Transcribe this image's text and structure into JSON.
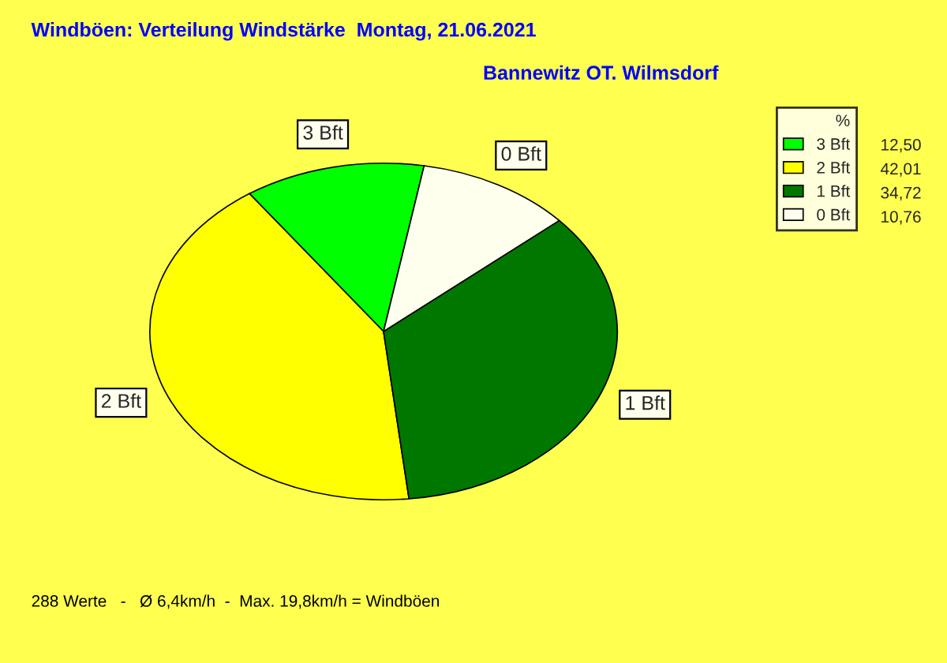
{
  "chart_data": {
    "type": "pie",
    "title": "Windböen: Verteilung Windstärke  Montag, 21.06.2021",
    "subtitle": "Bannewitz OT. Wilmsdorf",
    "categories": [
      "3 Bft",
      "2 Bft",
      "1 Bft",
      "0 Bft"
    ],
    "values": [
      12.5,
      42.01,
      34.72,
      10.76
    ],
    "value_labels": [
      "12,50",
      "42,01",
      "34,72",
      "10,76"
    ],
    "colors": [
      "#00ff00",
      "#ffff00",
      "#007800",
      "#ffffee"
    ],
    "legend_title": "%",
    "legend": "top right",
    "annotations": [
      "288 Werte   -   Ø 6,4km/h  -  Max. 19,8km/h = Windböen"
    ]
  }
}
